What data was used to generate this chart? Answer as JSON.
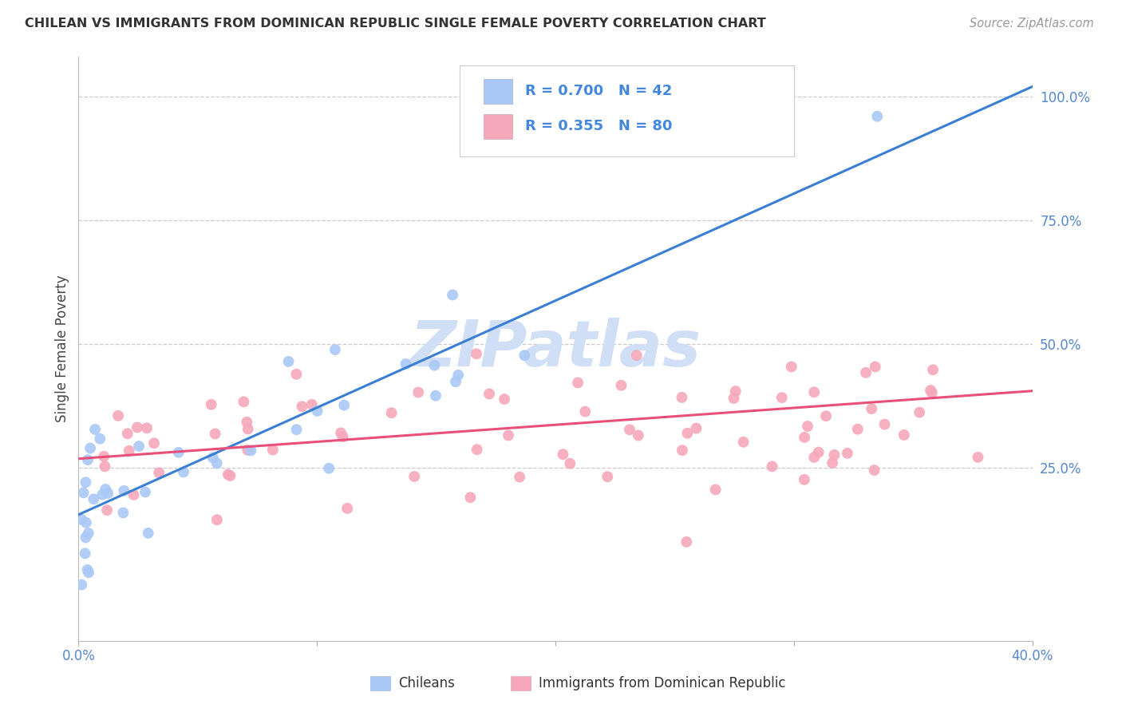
{
  "title": "CHILEAN VS IMMIGRANTS FROM DOMINICAN REPUBLIC SINGLE FEMALE POVERTY CORRELATION CHART",
  "source": "Source: ZipAtlas.com",
  "ylabel": "Single Female Poverty",
  "xlim": [
    0.0,
    0.4
  ],
  "ylim": [
    -0.1,
    1.08
  ],
  "xtick_vals": [
    0.0,
    0.1,
    0.2,
    0.3,
    0.4
  ],
  "xtick_labels": [
    "0.0%",
    "",
    "",
    "",
    "40.0%"
  ],
  "yticks_right": [
    0.25,
    0.5,
    0.75,
    1.0
  ],
  "ytick_labels_right": [
    "25.0%",
    "50.0%",
    "75.0%",
    "100.0%"
  ],
  "chileans_R": 0.7,
  "chileans_N": 42,
  "dominican_R": 0.355,
  "dominican_N": 80,
  "chilean_color": "#aac8f5",
  "dominican_color": "#f5a8ba",
  "chilean_line_color": "#3a7fd4",
  "dominican_line_color": "#e8507a",
  "watermark_color": "#d0dff5",
  "background_color": "#ffffff",
  "chilean_line_x0": 0.0,
  "chilean_line_y0": 0.155,
  "chilean_line_x1": 0.4,
  "chilean_line_y1": 1.02,
  "dominican_line_x0": 0.0,
  "dominican_line_y0": 0.268,
  "dominican_line_x1": 0.4,
  "dominican_line_y1": 0.405
}
